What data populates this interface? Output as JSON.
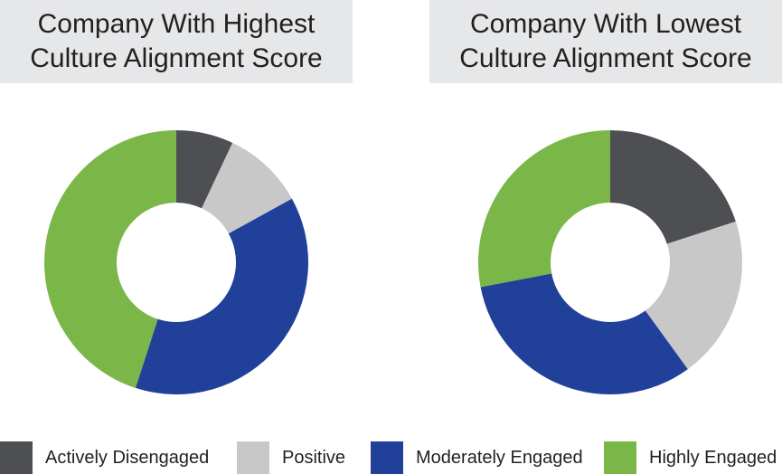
{
  "chart_data": [
    {
      "type": "pie",
      "title_lines": [
        "Company With Highest",
        "Culture Alignment Score"
      ],
      "categories": [
        "Actively Disengaged",
        "Positive",
        "Moderately Engaged",
        "Highly Engaged"
      ],
      "values": [
        7,
        10,
        38,
        45
      ],
      "unit": "%"
    },
    {
      "type": "pie",
      "title_lines": [
        "Company With Lowest",
        "Culture Alignment Score"
      ],
      "categories": [
        "Actively Disengaged",
        "Positive",
        "Moderately Engaged",
        "Highly Engaged"
      ],
      "values": [
        20,
        20,
        32,
        28
      ],
      "unit": "%"
    }
  ],
  "legend": [
    {
      "label": "Actively Disengaged",
      "color": "#4d4f53"
    },
    {
      "label": "Positive",
      "color": "#c8c8c8"
    },
    {
      "label": "Moderately Engaged",
      "color": "#21409a"
    },
    {
      "label": "Highly Engaged",
      "color": "#7ab648"
    }
  ],
  "legend_placement": "bottom",
  "grid": false
}
